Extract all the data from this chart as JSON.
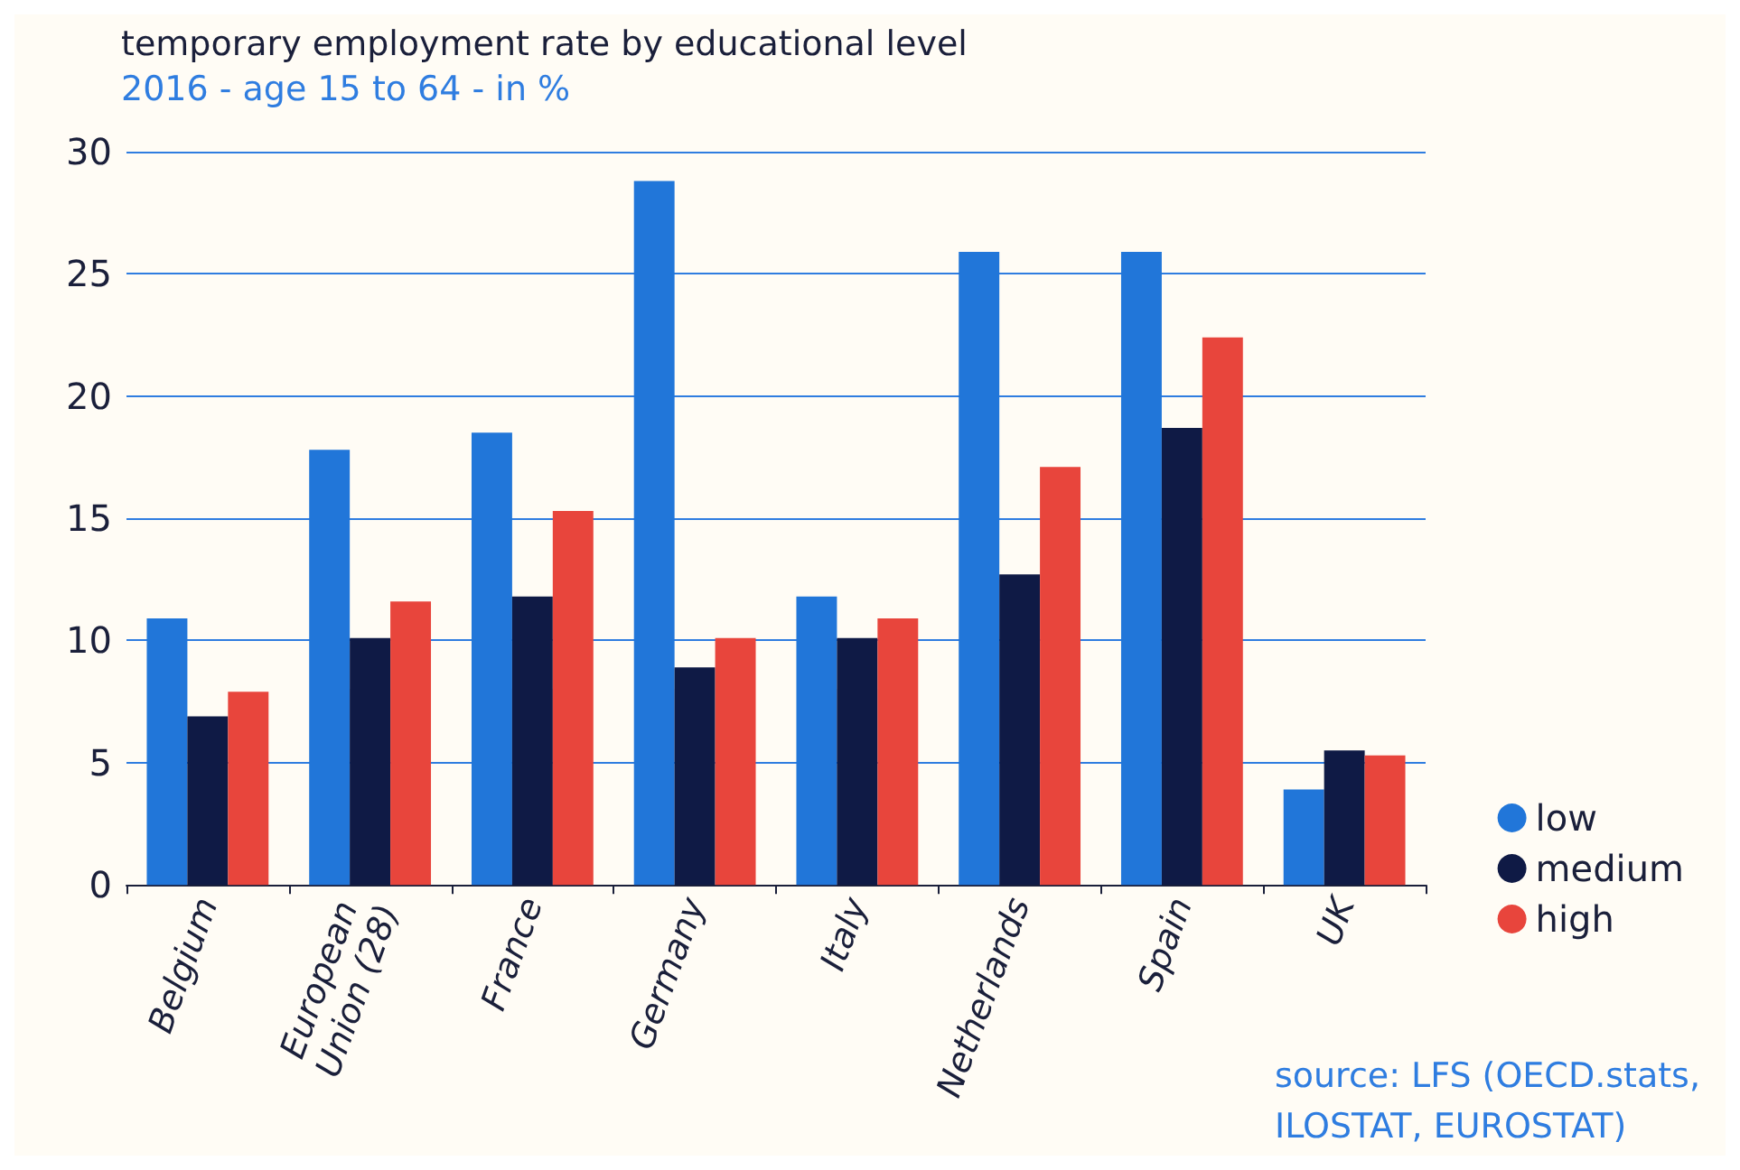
{
  "chart_data": {
    "type": "bar",
    "title": "temporary employment rate by educational level",
    "subtitle": "2016 - age 15 to 64 - in %",
    "categories": [
      "Belgium",
      "European Union (28)",
      "France",
      "Germany",
      "Italy",
      "Netherlands",
      "Spain",
      "UK"
    ],
    "series": [
      {
        "name": "low",
        "color": "#2176d9",
        "values": [
          10.9,
          17.8,
          18.5,
          28.8,
          11.8,
          25.9,
          25.9,
          3.9
        ]
      },
      {
        "name": "medium",
        "color": "#0f1a45",
        "values": [
          6.9,
          10.1,
          11.8,
          8.9,
          10.1,
          12.7,
          18.7,
          5.5
        ]
      },
      {
        "name": "high",
        "color": "#e8453c",
        "values": [
          7.9,
          11.6,
          15.3,
          10.1,
          10.9,
          17.1,
          22.4,
          5.3
        ]
      }
    ],
    "ylim": [
      0,
      30
    ],
    "yticks": [
      0,
      5,
      10,
      15,
      20,
      25,
      30
    ],
    "grid": "y",
    "legend": "right",
    "annotations": [
      "source: LFS (OECD.stats, ILOSTAT, EUROSTAT)"
    ]
  }
}
